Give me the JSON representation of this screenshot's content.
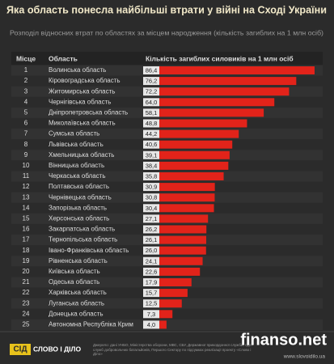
{
  "chart_data": {
    "type": "bar",
    "orientation": "horizontal",
    "title": "Яка область понесла найбільші втрати у війні на Сході України",
    "subtitle": "Розподіл відносних втрат по областях за місцем народження (кількість загиблих на 1 млн осіб)",
    "headers": [
      "Місце",
      "Область",
      "Кількість загиблих силовиків на 1 млн осіб"
    ],
    "ranks": [
      1,
      2,
      3,
      4,
      5,
      6,
      7,
      8,
      9,
      10,
      11,
      12,
      13,
      14,
      15,
      16,
      17,
      18,
      19,
      20,
      21,
      22,
      23,
      24,
      25
    ],
    "categories": [
      "Волинська область",
      "Кіровоградська область",
      "Житомирська область",
      "Чернігівська область",
      "Дніпропетровська область",
      "Миколаївська область",
      "Сумська область",
      "Львівська область",
      "Хмельницька область",
      "Вінницька область",
      "Черкаська область",
      "Полтавська область",
      "Чернівецька область",
      "Запорізька область",
      "Херсонська область",
      "Закарпатська область",
      "Тернопільська область",
      "Івано-Франківська область",
      "Рівненська область",
      "Київська область",
      "Одеська область",
      "Харківська область",
      "Луганська область",
      "Донецька область",
      "Автономна Республіка Крим"
    ],
    "values": [
      86.4,
      76.2,
      72.2,
      64.0,
      58.1,
      48.8,
      44.2,
      40.6,
      39.1,
      38.4,
      35.8,
      30.9,
      30.8,
      30.4,
      27.1,
      26.2,
      26.1,
      26.0,
      24.1,
      22.6,
      17.9,
      15.7,
      12.5,
      7.3,
      4.0
    ],
    "value_labels": [
      "86,4",
      "76,2",
      "72,2",
      "64,0",
      "58,1",
      "48,8",
      "44,2",
      "40,6",
      "39,1",
      "38,4",
      "35,8",
      "30,9",
      "30,8",
      "30,4",
      "27,1",
      "26,2",
      "26,1",
      "26,0",
      "24,1",
      "22,6",
      "17,9",
      "15,7",
      "12,5",
      "7,3",
      "4,0"
    ],
    "color": "#e2231a",
    "footer": {
      "logo_mark": "СІД",
      "logo": "СЛОВО І ДІЛО",
      "source": "Джерело: дані УНБО, Міністерства оборони, МВС, СБУ, Державної прикордонної служби, груп служб добровольчих батальйонів, Першого Сектору по підсумках реалізації проекту «Слово і Діло»",
      "url": "www.slovoidilo.ua",
      "watermark": "finanso.net"
    }
  }
}
